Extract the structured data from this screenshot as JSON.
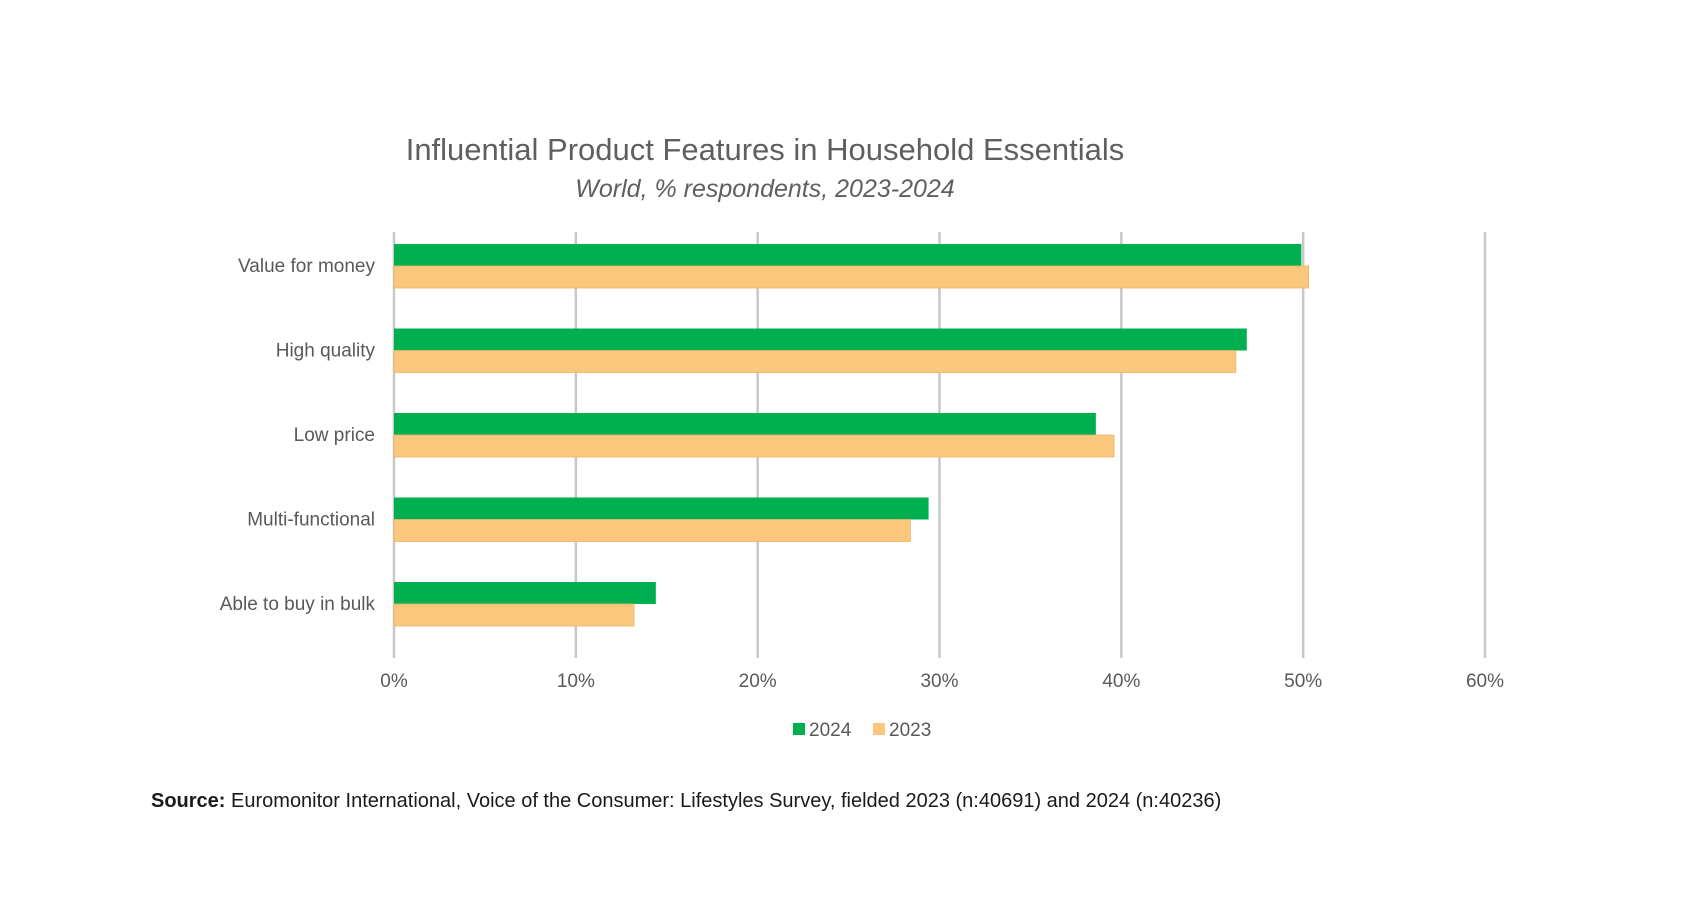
{
  "chart_data": {
    "type": "bar",
    "orientation": "horizontal",
    "title": "Influential Product Features in Household Essentials",
    "subtitle": "World, % respondents, 2023-2024",
    "categories": [
      "Value for money",
      "High quality",
      "Low price",
      "Multi-functional",
      "Able to buy in bulk"
    ],
    "series": [
      {
        "name": "2024",
        "color": "#00b050",
        "values": [
          49.9,
          46.9,
          38.6,
          29.4,
          14.4
        ]
      },
      {
        "name": "2023",
        "color": "#fbc77c",
        "values": [
          50.3,
          46.3,
          39.6,
          28.4,
          13.2
        ]
      }
    ],
    "x_ticks": [
      "0%",
      "10%",
      "20%",
      "30%",
      "40%",
      "50%",
      "60%"
    ],
    "xlim": [
      0,
      60
    ],
    "grid": true,
    "legend_position": "bottom"
  },
  "source": {
    "label": "Source:",
    "text": "Euromonitor International, Voice of the Consumer: Lifestyles Survey, fielded 2023 (n:40691) and 2024 (n:40236)"
  }
}
